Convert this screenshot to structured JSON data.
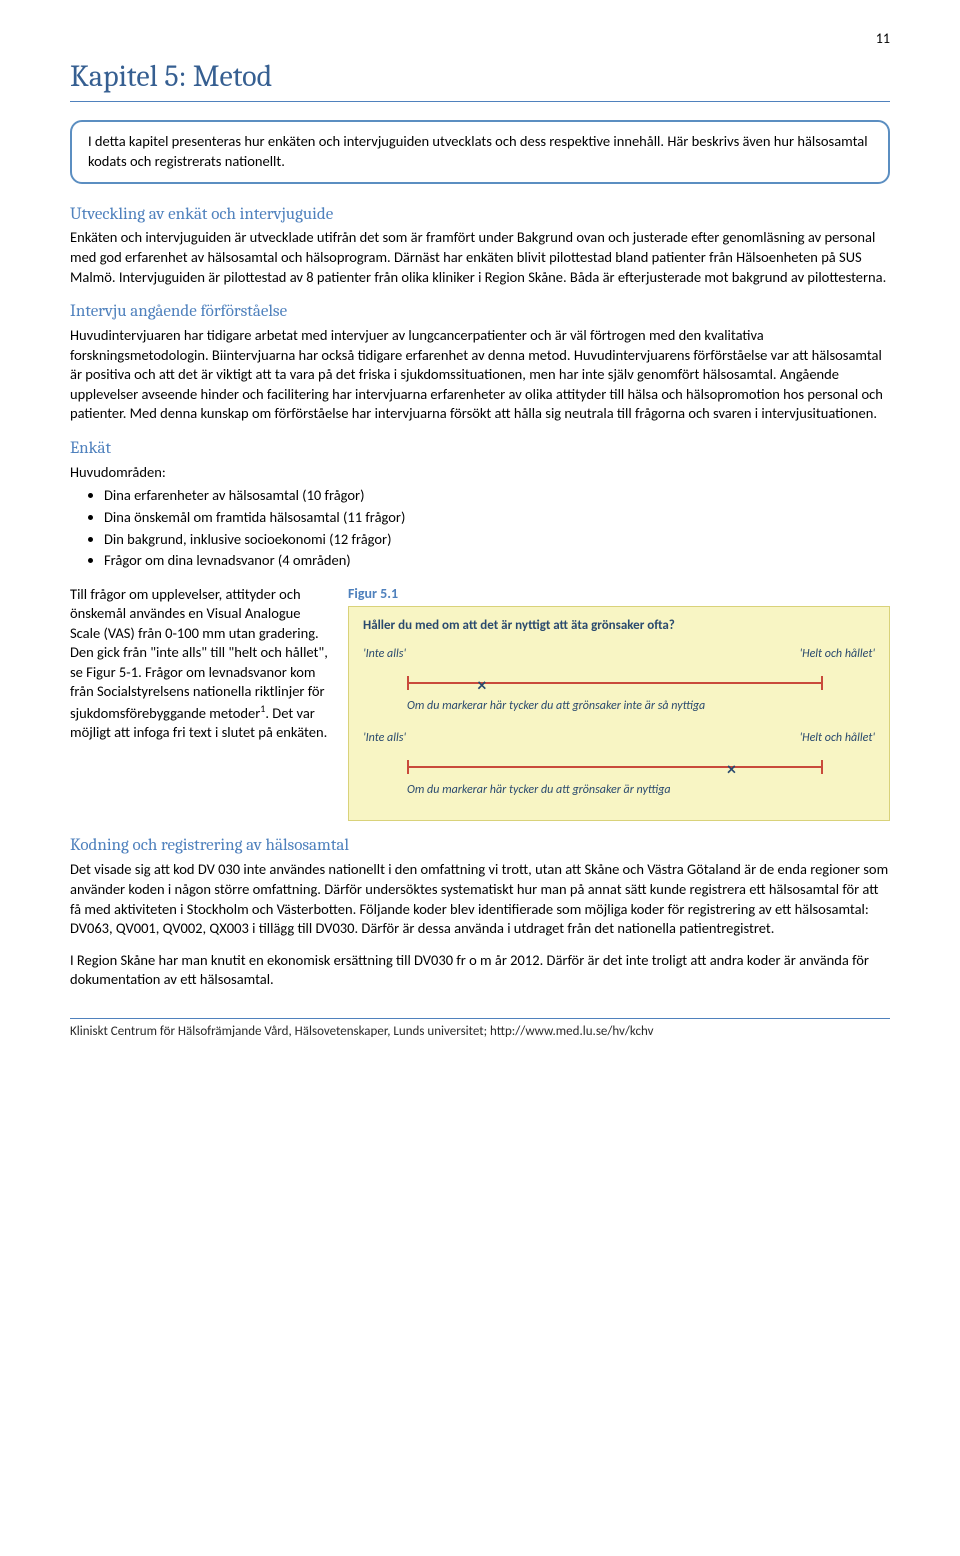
{
  "page_number": "11",
  "chapter_title": "Kapitel 5: Metod",
  "intro_box": "I detta kapitel presenteras hur enkäten och intervjuguiden utvecklats och dess respektive innehåll. Här beskrivs även hur hälsosamtal kodats och registrerats nationellt.",
  "sections": {
    "utveckling": {
      "heading": "Utveckling av enkät och intervjuguide",
      "text": "Enkäten och intervjuguiden är utvecklade utifrån det som är framfört under Bakgrund ovan och justerade efter genomläsning av personal med god erfarenhet av hälsosamtal och hälsoprogram. Därnäst har enkäten blivit pilottestad bland patienter från Hälsoenheten på SUS Malmö. Intervjuguiden är pilottestad av 8 patienter från olika kliniker i Region Skåne. Båda är efterjusterade mot bakgrund av pilottesterna."
    },
    "intervju": {
      "heading": "Intervju angående förförståelse",
      "text": "Huvudintervjuaren har tidigare arbetat med intervjuer av lungcancerpatienter och är väl förtrogen med den kvalitativa forskningsmetodologin. Biintervjuarna har också tidigare erfarenhet av denna metod. Huvudintervjuarens förförståelse var att hälsosamtal är positiva och att det är viktigt att ta vara på det friska i sjukdomssituationen, men har inte själv genomfört hälsosamtal. Angående upplevelser avseende hinder och facilitering har intervjuarna erfarenheter av olika attityder till hälsa och hälsopromotion hos personal och patienter. Med denna kunskap om förförståelse har intervjuarna försökt att hålla sig neutrala till frågorna och svaren i intervjusituationen."
    },
    "enkat": {
      "heading": "Enkät",
      "lead": "Huvudområden:",
      "bullets": [
        "Dina erfarenheter av hälsosamtal (10 frågor)",
        "Dina önskemål om framtida hälsosamtal (11 frågor)",
        "Din bakgrund, inklusive socioekonomi (12 frågor)",
        "Frågor om dina levnadsvanor (4 områden)"
      ],
      "vas_para_1": "Till frågor om upplevelser, attityder och önskemål användes en Visual Analogue Scale (VAS) från 0-100 mm utan gradering. Den gick från \"inte alls\" till \"helt och hållet\", se Figur 5-1. Frågor om levnadsvanor kom från Socialstyrelsens nationella riktlinjer för sjukdomsförebyggande metoder",
      "vas_para_2": ". Det var möjligt att infoga fri text i slutet på enkäten.",
      "footnote_mark": "1",
      "figure_label": "Figur 5.1",
      "figure": {
        "question": "Håller du med om att det är nyttigt att äta grönsaker ofta?",
        "end_left": "'Inte alls'",
        "end_right": "'Helt och hållet'",
        "caption1": "Om du markerar här tycker du att grönsaker inte är så nyttiga",
        "caption2": "Om du markerar här tycker du att grönsaker är nyttiga",
        "x1_pos_pct": 18,
        "x2_pos_pct": 78,
        "line_color": "#c94a3b",
        "box_bg": "#f8f5c4",
        "box_border": "#d9d27a",
        "text_color": "#2a4a6e"
      }
    },
    "kodning": {
      "heading": "Kodning och registrering av hälsosamtal",
      "para1": "Det visade sig att kod DV 030 inte användes nationellt i den omfattning vi trott, utan att Skåne och Västra Götaland är de enda regioner som använder koden i någon större omfattning. Därför undersöktes systematiskt hur man på annat sätt kunde registrera ett hälsosamtal för att få med aktiviteten i Stockholm och Västerbotten. Följande koder blev identifierade som möjliga koder för registrering av ett hälsosamtal: DV063, QV001, QV002, QX003 i tillägg till DV030. Därför är dessa använda i utdraget från det nationella patientregistret.",
      "para2": "I Region Skåne har man knutit en ekonomisk ersättning till DV030 fr o m år 2012. Därför är det inte troligt att andra koder är använda för dokumentation av ett hälsosamtal."
    }
  },
  "footer": "Kliniskt Centrum för Hälsofrämjande Vård, Hälsovetenskaper, Lunds universitet; http://www.med.lu.se/hv/kchv",
  "colors": {
    "heading_blue": "#365f91",
    "section_blue": "#4f81bd",
    "rule_blue": "#4f81bd",
    "box_border_blue": "#5b8ec1"
  }
}
